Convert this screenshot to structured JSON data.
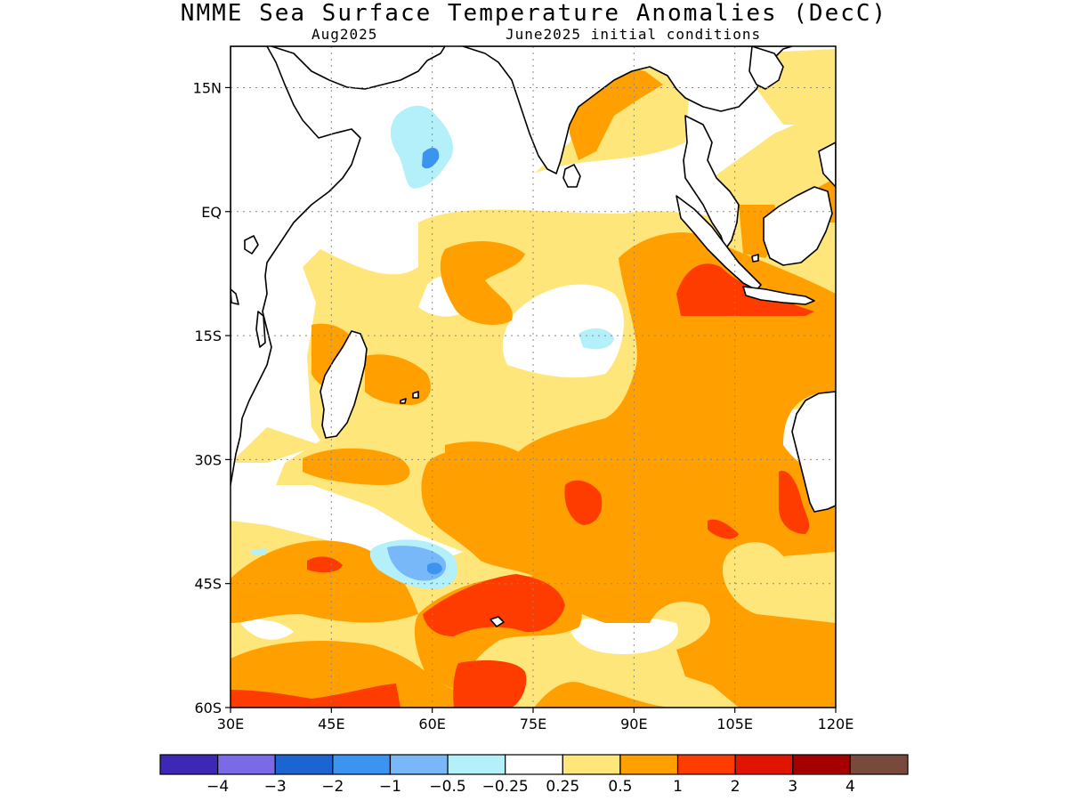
{
  "title": "NMME Sea Surface Temperature Anomalies (DecC)",
  "subtitle_left": "Aug2025",
  "subtitle_right": "June2025 initial conditions",
  "map": {
    "lon_range": [
      30,
      120
    ],
    "lat_range": [
      -60,
      20
    ],
    "lat_ticks": [
      {
        "value": 15,
        "label": "15N"
      },
      {
        "value": 0,
        "label": "EQ"
      },
      {
        "value": -15,
        "label": "15S"
      },
      {
        "value": -30,
        "label": "30S"
      },
      {
        "value": -45,
        "label": "45S"
      },
      {
        "value": -60,
        "label": "60S"
      }
    ],
    "lon_ticks": [
      {
        "value": 30,
        "label": "30E"
      },
      {
        "value": 45,
        "label": "45E"
      },
      {
        "value": 60,
        "label": "60E"
      },
      {
        "value": 75,
        "label": "75E"
      },
      {
        "value": 90,
        "label": "90E"
      },
      {
        "value": 105,
        "label": "105E"
      },
      {
        "value": 120,
        "label": "120E"
      }
    ],
    "grid": true
  },
  "colorbar": {
    "colors": [
      "#3c28b4",
      "#7a6ae6",
      "#1c64d2",
      "#3a94f0",
      "#78b8f8",
      "#b4f0fa",
      "#ffffff",
      "#ffe67a",
      "#ffa000",
      "#ff3c00",
      "#e01400",
      "#a50000",
      "#784a3c"
    ],
    "labels": [
      "−4",
      "−3",
      "−2",
      "−1",
      "−0.5",
      "−0.25",
      "0.25",
      "0.5",
      "1",
      "2",
      "3",
      "4"
    ]
  }
}
